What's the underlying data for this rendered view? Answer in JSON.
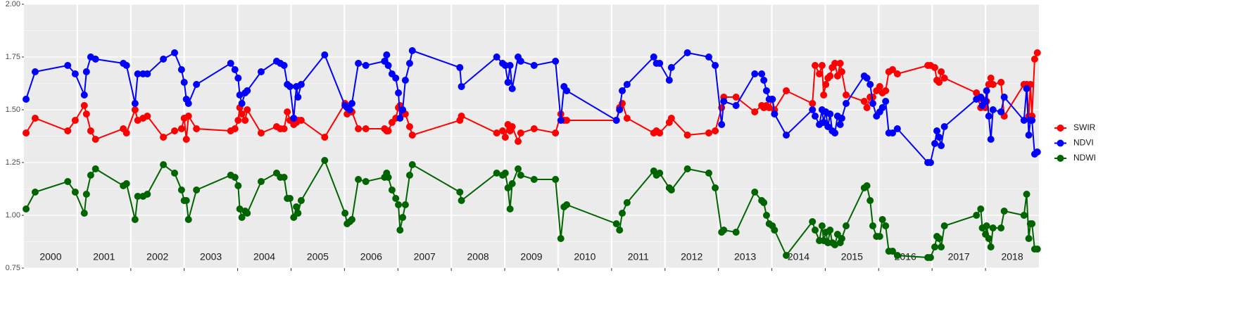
{
  "chart_data": {
    "type": "line",
    "x": [
      2000.04,
      2000.21,
      2000.82,
      2000.96,
      2001.13,
      2001.17,
      2001.25,
      2001.34,
      2001.86,
      2001.92,
      2002.08,
      2002.13,
      2002.23,
      2002.31,
      2002.61,
      2002.82,
      2002.95,
      2003.0,
      2003.04,
      2003.08,
      2003.23,
      2003.87,
      2003.95,
      2004.01,
      2004.04,
      2004.08,
      2004.14,
      2004.18,
      2004.44,
      2004.73,
      2004.8,
      2004.87,
      2004.93,
      2004.98,
      2005.05,
      2005.1,
      2005.13,
      2005.19,
      2005.63,
      2006.01,
      2006.05,
      2006.1,
      2006.14,
      2006.26,
      2006.4,
      2006.75,
      2006.79,
      2006.82,
      2006.89,
      2006.96,
      2007.01,
      2007.04,
      2007.09,
      2007.14,
      2007.22,
      2007.27,
      2008.16,
      2008.19,
      2008.85,
      2008.96,
      2009.01,
      2009.06,
      2009.1,
      2009.14,
      2009.25,
      2009.3,
      2009.55,
      2009.95,
      2010.05,
      2010.11,
      2010.16,
      2011.09,
      2011.15,
      2011.2,
      2011.29,
      2011.79,
      2011.84,
      2011.9,
      2012.08,
      2012.12,
      2012.42,
      2012.82,
      2012.94,
      2013.06,
      2013.1,
      2013.33,
      2013.68,
      2013.81,
      2013.85,
      2013.9,
      2013.95,
      2014.01,
      2014.05,
      2014.27,
      2014.76,
      2014.81,
      2014.89,
      2014.94,
      2014.97,
      2015.01,
      2015.05,
      2015.09,
      2015.13,
      2015.18,
      2015.23,
      2015.28,
      2015.31,
      2015.39,
      2015.73,
      2015.78,
      2015.84,
      2015.89,
      2015.96,
      2016.02,
      2016.07,
      2016.13,
      2016.19,
      2016.26,
      2016.35,
      2016.92,
      2016.97,
      2017.05,
      2017.09,
      2017.13,
      2017.17,
      2017.23,
      2017.83,
      2017.91,
      2017.94,
      2018.0,
      2018.02,
      2018.06,
      2018.1,
      2018.14,
      2018.29,
      2018.35,
      2018.72,
      2018.77,
      2018.81,
      2018.84,
      2018.87,
      2018.92,
      2018.97
    ],
    "series": [
      {
        "name": "SWIR",
        "color": "#ff0000",
        "values": [
          1.39,
          1.46,
          1.4,
          1.45,
          1.52,
          1.48,
          1.4,
          1.36,
          1.41,
          1.39,
          1.5,
          1.45,
          1.46,
          1.47,
          1.37,
          1.4,
          1.41,
          1.46,
          1.36,
          1.47,
          1.41,
          1.4,
          1.41,
          1.45,
          1.51,
          1.48,
          1.45,
          1.5,
          1.39,
          1.42,
          1.41,
          1.41,
          1.49,
          1.45,
          1.43,
          1.44,
          1.45,
          1.45,
          1.37,
          1.53,
          1.48,
          1.49,
          1.49,
          1.41,
          1.41,
          1.41,
          1.4,
          1.4,
          1.44,
          1.46,
          1.51,
          1.52,
          1.48,
          1.48,
          1.42,
          1.38,
          1.45,
          1.47,
          1.39,
          1.4,
          1.37,
          1.43,
          1.4,
          1.42,
          1.35,
          1.39,
          1.41,
          1.39,
          1.48,
          1.45,
          1.45,
          1.45,
          1.51,
          1.53,
          1.46,
          1.39,
          1.4,
          1.39,
          1.44,
          1.46,
          1.38,
          1.39,
          1.4,
          1.51,
          1.56,
          1.56,
          1.49,
          1.52,
          1.51,
          1.52,
          1.51,
          1.55,
          1.5,
          1.59,
          1.53,
          1.71,
          1.67,
          1.71,
          1.57,
          1.62,
          1.65,
          1.66,
          1.7,
          1.72,
          1.66,
          1.72,
          1.68,
          1.57,
          1.54,
          1.51,
          1.56,
          1.56,
          1.59,
          1.61,
          1.58,
          1.59,
          1.68,
          1.69,
          1.67,
          1.71,
          1.71,
          1.7,
          1.64,
          1.63,
          1.68,
          1.65,
          1.58,
          1.51,
          1.55,
          1.51,
          1.54,
          1.62,
          1.65,
          1.62,
          1.63,
          1.47,
          1.62,
          1.62,
          1.47,
          1.62,
          1.47,
          1.74,
          1.77
        ]
      },
      {
        "name": "NDVI",
        "color": "#0000ff",
        "values": [
          1.55,
          1.68,
          1.71,
          1.67,
          1.57,
          1.68,
          1.75,
          1.74,
          1.72,
          1.71,
          1.53,
          1.67,
          1.67,
          1.67,
          1.74,
          1.77,
          1.69,
          1.63,
          1.55,
          1.53,
          1.62,
          1.72,
          1.69,
          1.65,
          1.57,
          1.53,
          1.58,
          1.59,
          1.68,
          1.73,
          1.72,
          1.71,
          1.62,
          1.61,
          1.46,
          1.61,
          1.56,
          1.62,
          1.76,
          1.52,
          1.51,
          1.5,
          1.53,
          1.72,
          1.71,
          1.73,
          1.76,
          1.71,
          1.67,
          1.65,
          1.58,
          1.46,
          1.5,
          1.64,
          1.72,
          1.78,
          1.7,
          1.61,
          1.75,
          1.72,
          1.71,
          1.63,
          1.71,
          1.6,
          1.75,
          1.73,
          1.71,
          1.73,
          1.45,
          1.61,
          1.59,
          1.45,
          1.5,
          1.59,
          1.62,
          1.75,
          1.72,
          1.72,
          1.64,
          1.7,
          1.77,
          1.75,
          1.71,
          1.43,
          1.54,
          1.52,
          1.67,
          1.67,
          1.64,
          1.59,
          1.55,
          1.55,
          1.48,
          1.38,
          1.5,
          1.47,
          1.43,
          1.5,
          1.44,
          1.49,
          1.42,
          1.48,
          1.4,
          1.39,
          1.47,
          1.43,
          1.46,
          1.53,
          1.66,
          1.65,
          1.62,
          1.53,
          1.47,
          1.49,
          1.51,
          1.54,
          1.39,
          1.39,
          1.41,
          1.25,
          1.25,
          1.34,
          1.4,
          1.37,
          1.33,
          1.42,
          1.55,
          1.56,
          1.52,
          1.54,
          1.59,
          1.47,
          1.36,
          1.5,
          1.49,
          1.56,
          1.45,
          1.6,
          1.38,
          1.45,
          1.45,
          1.29,
          1.3
        ]
      },
      {
        "name": "NDWI",
        "color": "#006400",
        "values": [
          1.03,
          1.11,
          1.16,
          1.11,
          1.01,
          1.1,
          1.19,
          1.22,
          1.14,
          1.15,
          0.98,
          1.09,
          1.09,
          1.1,
          1.24,
          1.2,
          1.12,
          1.07,
          1.07,
          0.98,
          1.12,
          1.19,
          1.18,
          1.14,
          1.03,
          0.99,
          1.02,
          1.01,
          1.16,
          1.2,
          1.18,
          1.18,
          1.08,
          1.08,
          0.99,
          1.04,
          1.01,
          1.07,
          1.26,
          1.01,
          0.96,
          0.97,
          0.98,
          1.17,
          1.16,
          1.18,
          1.2,
          1.18,
          1.12,
          1.08,
          1.05,
          0.93,
          0.99,
          1.05,
          1.19,
          1.24,
          1.11,
          1.07,
          1.2,
          1.19,
          1.2,
          1.13,
          1.03,
          1.15,
          1.22,
          1.19,
          1.17,
          1.17,
          0.89,
          1.04,
          1.05,
          0.96,
          0.93,
          1.01,
          1.06,
          1.21,
          1.19,
          1.2,
          1.13,
          1.12,
          1.22,
          1.2,
          1.13,
          0.92,
          0.93,
          0.92,
          1.11,
          1.07,
          1.06,
          1.0,
          0.96,
          0.95,
          0.93,
          0.81,
          0.97,
          0.93,
          0.88,
          0.95,
          0.88,
          0.92,
          0.87,
          0.93,
          0.87,
          0.86,
          0.91,
          0.87,
          0.89,
          0.95,
          1.13,
          1.14,
          1.07,
          0.95,
          0.9,
          0.9,
          0.98,
          0.95,
          0.83,
          0.83,
          0.81,
          0.8,
          0.8,
          0.85,
          0.9,
          0.89,
          0.85,
          0.95,
          1.0,
          1.03,
          0.94,
          0.91,
          0.95,
          0.89,
          0.85,
          0.94,
          0.94,
          1.02,
          1.0,
          1.1,
          0.89,
          0.96,
          0.96,
          0.84,
          0.84
        ]
      }
    ],
    "xlim": [
      2000,
      2019
    ],
    "xticks": [
      2001,
      2002,
      2003,
      2004,
      2005,
      2006,
      2007,
      2008,
      2009,
      2010,
      2011,
      2012,
      2013,
      2014,
      2015,
      2016,
      2017,
      2018
    ],
    "year_labels": [
      {
        "value": 2000.5,
        "label": "2000"
      },
      {
        "value": 2001.5,
        "label": "2001"
      },
      {
        "value": 2002.5,
        "label": "2002"
      },
      {
        "value": 2003.5,
        "label": "2003"
      },
      {
        "value": 2004.5,
        "label": "2004"
      },
      {
        "value": 2005.5,
        "label": "2005"
      },
      {
        "value": 2006.5,
        "label": "2006"
      },
      {
        "value": 2007.5,
        "label": "2007"
      },
      {
        "value": 2008.5,
        "label": "2008"
      },
      {
        "value": 2009.5,
        "label": "2009"
      },
      {
        "value": 2010.5,
        "label": "2010"
      },
      {
        "value": 2011.5,
        "label": "2011"
      },
      {
        "value": 2012.5,
        "label": "2012"
      },
      {
        "value": 2013.5,
        "label": "2013"
      },
      {
        "value": 2014.5,
        "label": "2014"
      },
      {
        "value": 2015.5,
        "label": "2015"
      },
      {
        "value": 2016.5,
        "label": "2016"
      },
      {
        "value": 2017.5,
        "label": "2017"
      },
      {
        "value": 2018.5,
        "label": "2018"
      }
    ],
    "ylim": [
      0.75,
      2
    ],
    "yticks": [
      0.75,
      {
        "value": 1,
        "label": "1.00"
      },
      1.25,
      {
        "value": 1.5,
        "label": "1.50"
      },
      1.75,
      {
        "value": 2,
        "label": "2.00"
      }
    ],
    "grid": true,
    "legend": "right"
  }
}
